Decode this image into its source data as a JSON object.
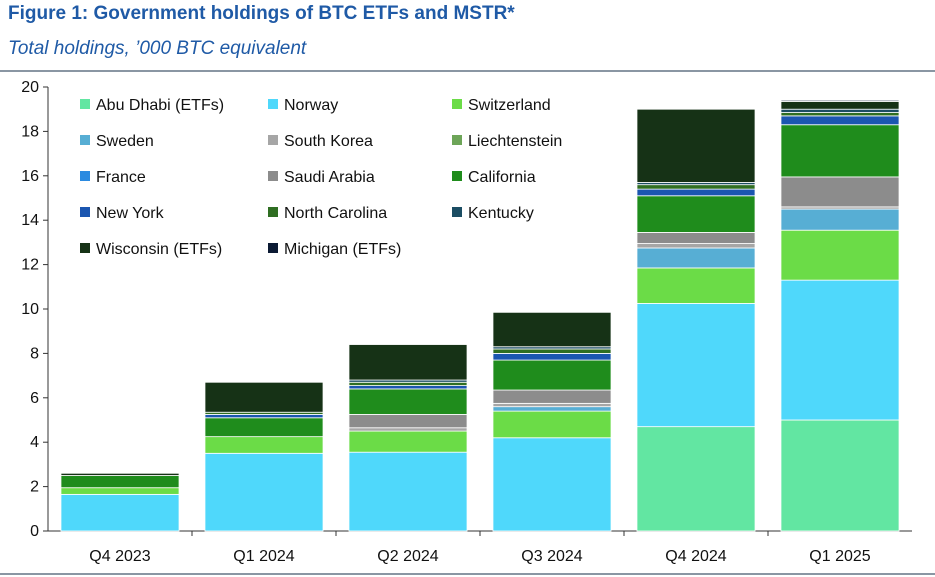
{
  "chart_data": {
    "type": "bar",
    "stacked": true,
    "title": "Figure 1: Government holdings of BTC ETFs and MSTR*",
    "subtitle": "Total holdings, ’000 BTC equivalent",
    "categories": [
      "Q4 2023",
      "Q1 2024",
      "Q2 2024",
      "Q3 2024",
      "Q4 2024",
      "Q1 2025"
    ],
    "ylim": [
      0,
      20
    ],
    "yticks": [
      0,
      2,
      4,
      6,
      8,
      10,
      12,
      14,
      16,
      18,
      20
    ],
    "grid": false,
    "legend_position": "top-left",
    "series": [
      {
        "name": "Abu Dhabi (ETFs)",
        "color": "#62e6a2",
        "values": [
          0,
          0,
          0,
          0,
          4.7,
          5.0
        ]
      },
      {
        "name": "Norway",
        "color": "#4fd8fb",
        "values": [
          1.65,
          3.5,
          3.55,
          4.2,
          5.55,
          6.3
        ]
      },
      {
        "name": "Switzerland",
        "color": "#6bdc47",
        "values": [
          0.3,
          0.75,
          0.95,
          1.2,
          1.6,
          2.25
        ]
      },
      {
        "name": "Sweden",
        "color": "#57aed4",
        "values": [
          0,
          0,
          0,
          0.2,
          0.9,
          0.95
        ]
      },
      {
        "name": "South Korea",
        "color": "#a6a6a6",
        "values": [
          0,
          0,
          0.15,
          0.15,
          0.2,
          0.1
        ]
      },
      {
        "name": "Liechtenstein",
        "color": "#6da558",
        "values": [
          0,
          0,
          0,
          0,
          0,
          0
        ]
      },
      {
        "name": "France",
        "color": "#2b8ae0",
        "values": [
          0,
          0,
          0,
          0,
          0,
          0
        ]
      },
      {
        "name": "Saudi Arabia",
        "color": "#8c8c8c",
        "values": [
          0,
          0,
          0.6,
          0.6,
          0.5,
          1.35
        ]
      },
      {
        "name": "California",
        "color": "#1f8c1c",
        "values": [
          0.55,
          0.85,
          1.15,
          1.35,
          1.65,
          2.35
        ]
      },
      {
        "name": "New York",
        "color": "#1b56b0",
        "values": [
          0,
          0.15,
          0.15,
          0.3,
          0.3,
          0.4
        ]
      },
      {
        "name": "North Carolina",
        "color": "#2f6e22",
        "values": [
          0,
          0.1,
          0.15,
          0.2,
          0.2,
          0.15
        ]
      },
      {
        "name": "Kentucky",
        "color": "#1b4d63",
        "values": [
          0,
          0,
          0.1,
          0.1,
          0.1,
          0.15
        ]
      },
      {
        "name": "Wisconsin (ETFs)",
        "color": "#163216",
        "values": [
          0.1,
          1.35,
          1.6,
          1.55,
          3.3,
          0.35
        ]
      },
      {
        "name": "Michigan (ETFs)",
        "color": "#0b1a33",
        "values": [
          0,
          0,
          0,
          0,
          0,
          0.05
        ]
      }
    ]
  }
}
